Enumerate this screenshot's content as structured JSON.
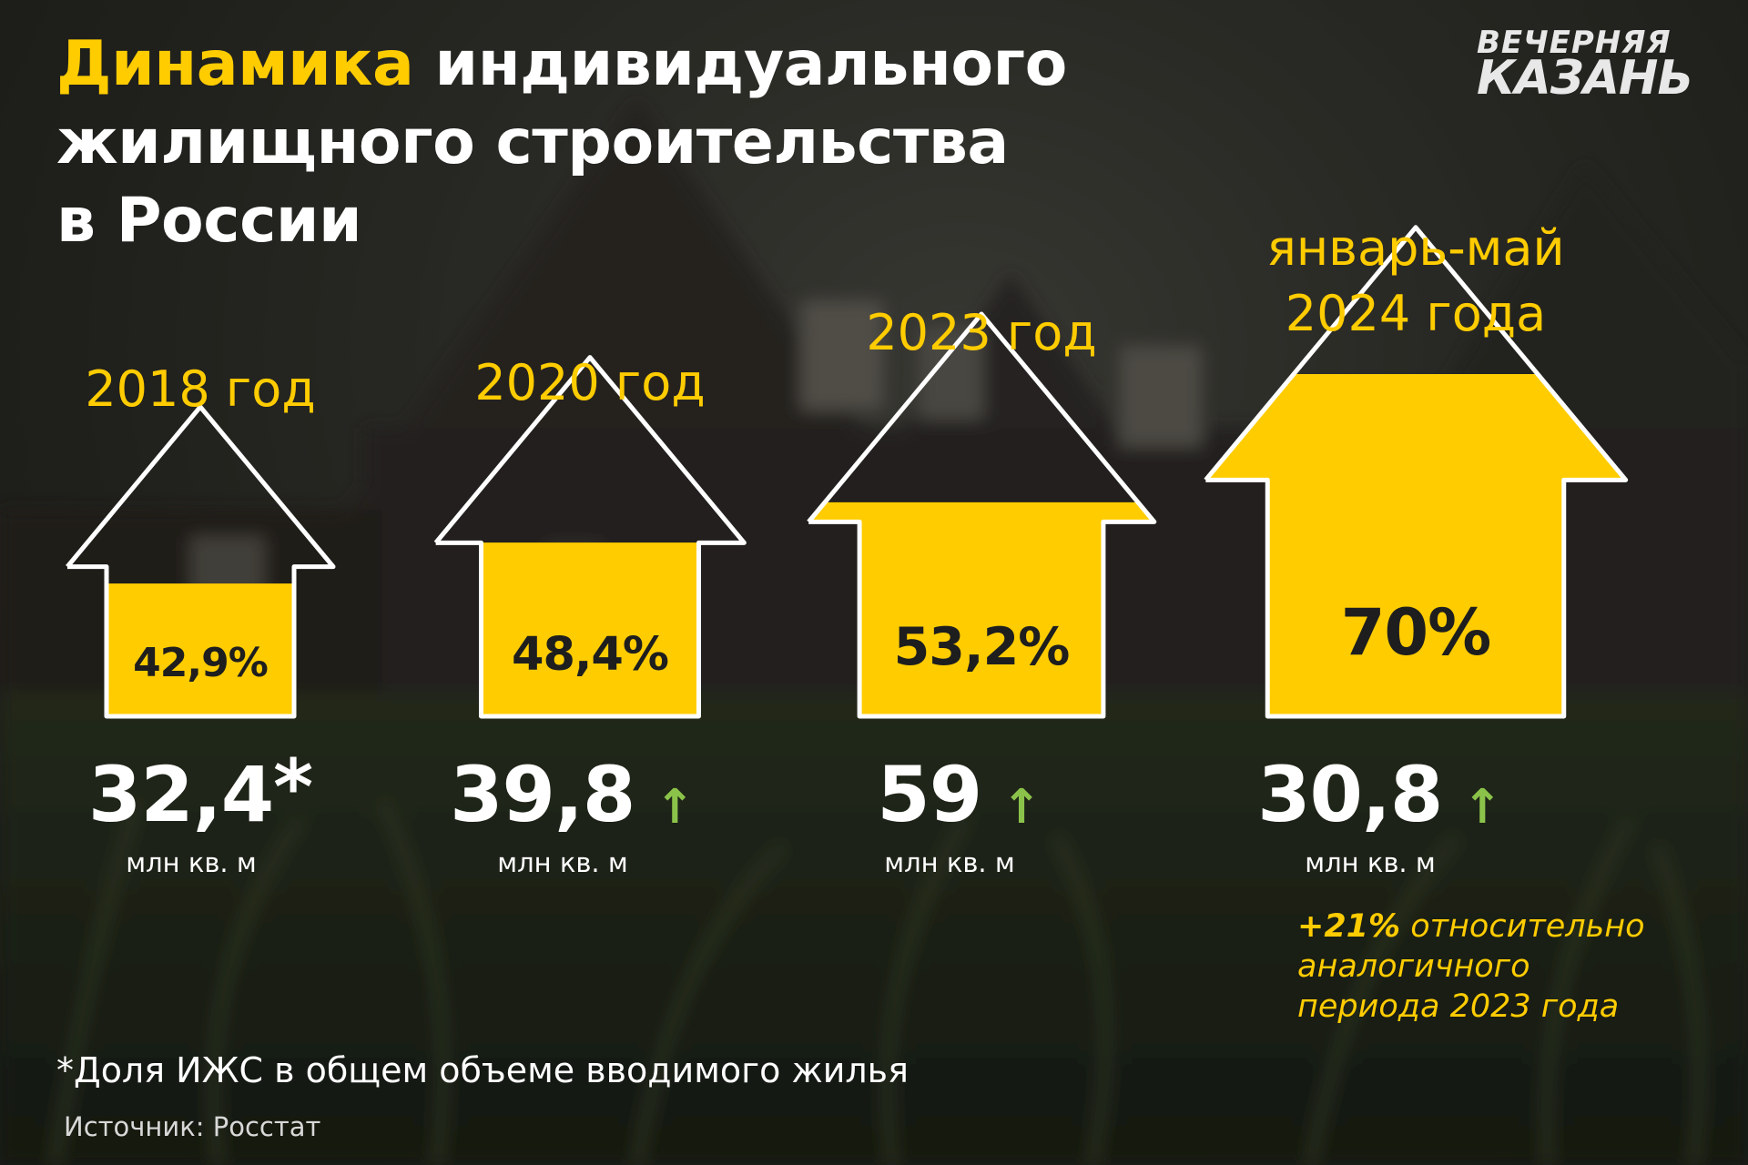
{
  "header": {
    "title_highlight": "Динамика",
    "title_rest_line1": "индивидуального",
    "title_line2": "жилищного строительства",
    "title_line3": "в России"
  },
  "logo": {
    "line1": "ВЕЧЕРНЯЯ",
    "line2": "КАЗАНЬ"
  },
  "colors": {
    "accent": "#ffcc00",
    "arrow": "#8bc34a",
    "text": "#ffffff"
  },
  "chart_data": {
    "type": "bar",
    "categories": [
      "2018 год",
      "2020 год",
      "2023 год",
      "январь-май 2024 года"
    ],
    "category_lines": [
      [
        "2018 год"
      ],
      [
        "2020 год"
      ],
      [
        "2023 год"
      ],
      [
        "январь-май",
        "2024 года"
      ]
    ],
    "series": [
      {
        "values": [
          42.9,
          48.4,
          53.2,
          70
        ],
        "labels": [
          "42,9%",
          "48,4%",
          "53,2%",
          "70%"
        ]
      },
      {
        "values": [
          32.4,
          39.8,
          59,
          30.8
        ],
        "labels": [
          "32,4",
          "39,8",
          "59",
          "30,8"
        ]
      }
    ],
    "value_marks": [
      "*",
      "↑",
      "↑",
      "↑"
    ],
    "unit": "млн кв. м",
    "ylim": [
      0,
      100
    ]
  },
  "annotation": {
    "bold": "+21%",
    "rest_line1": " относительно",
    "line2": "аналогичного",
    "line3": "периода 2023 года"
  },
  "footnote": "*Доля ИЖС в общем объеме вводимого жилья",
  "source": "Источник: Росстат"
}
